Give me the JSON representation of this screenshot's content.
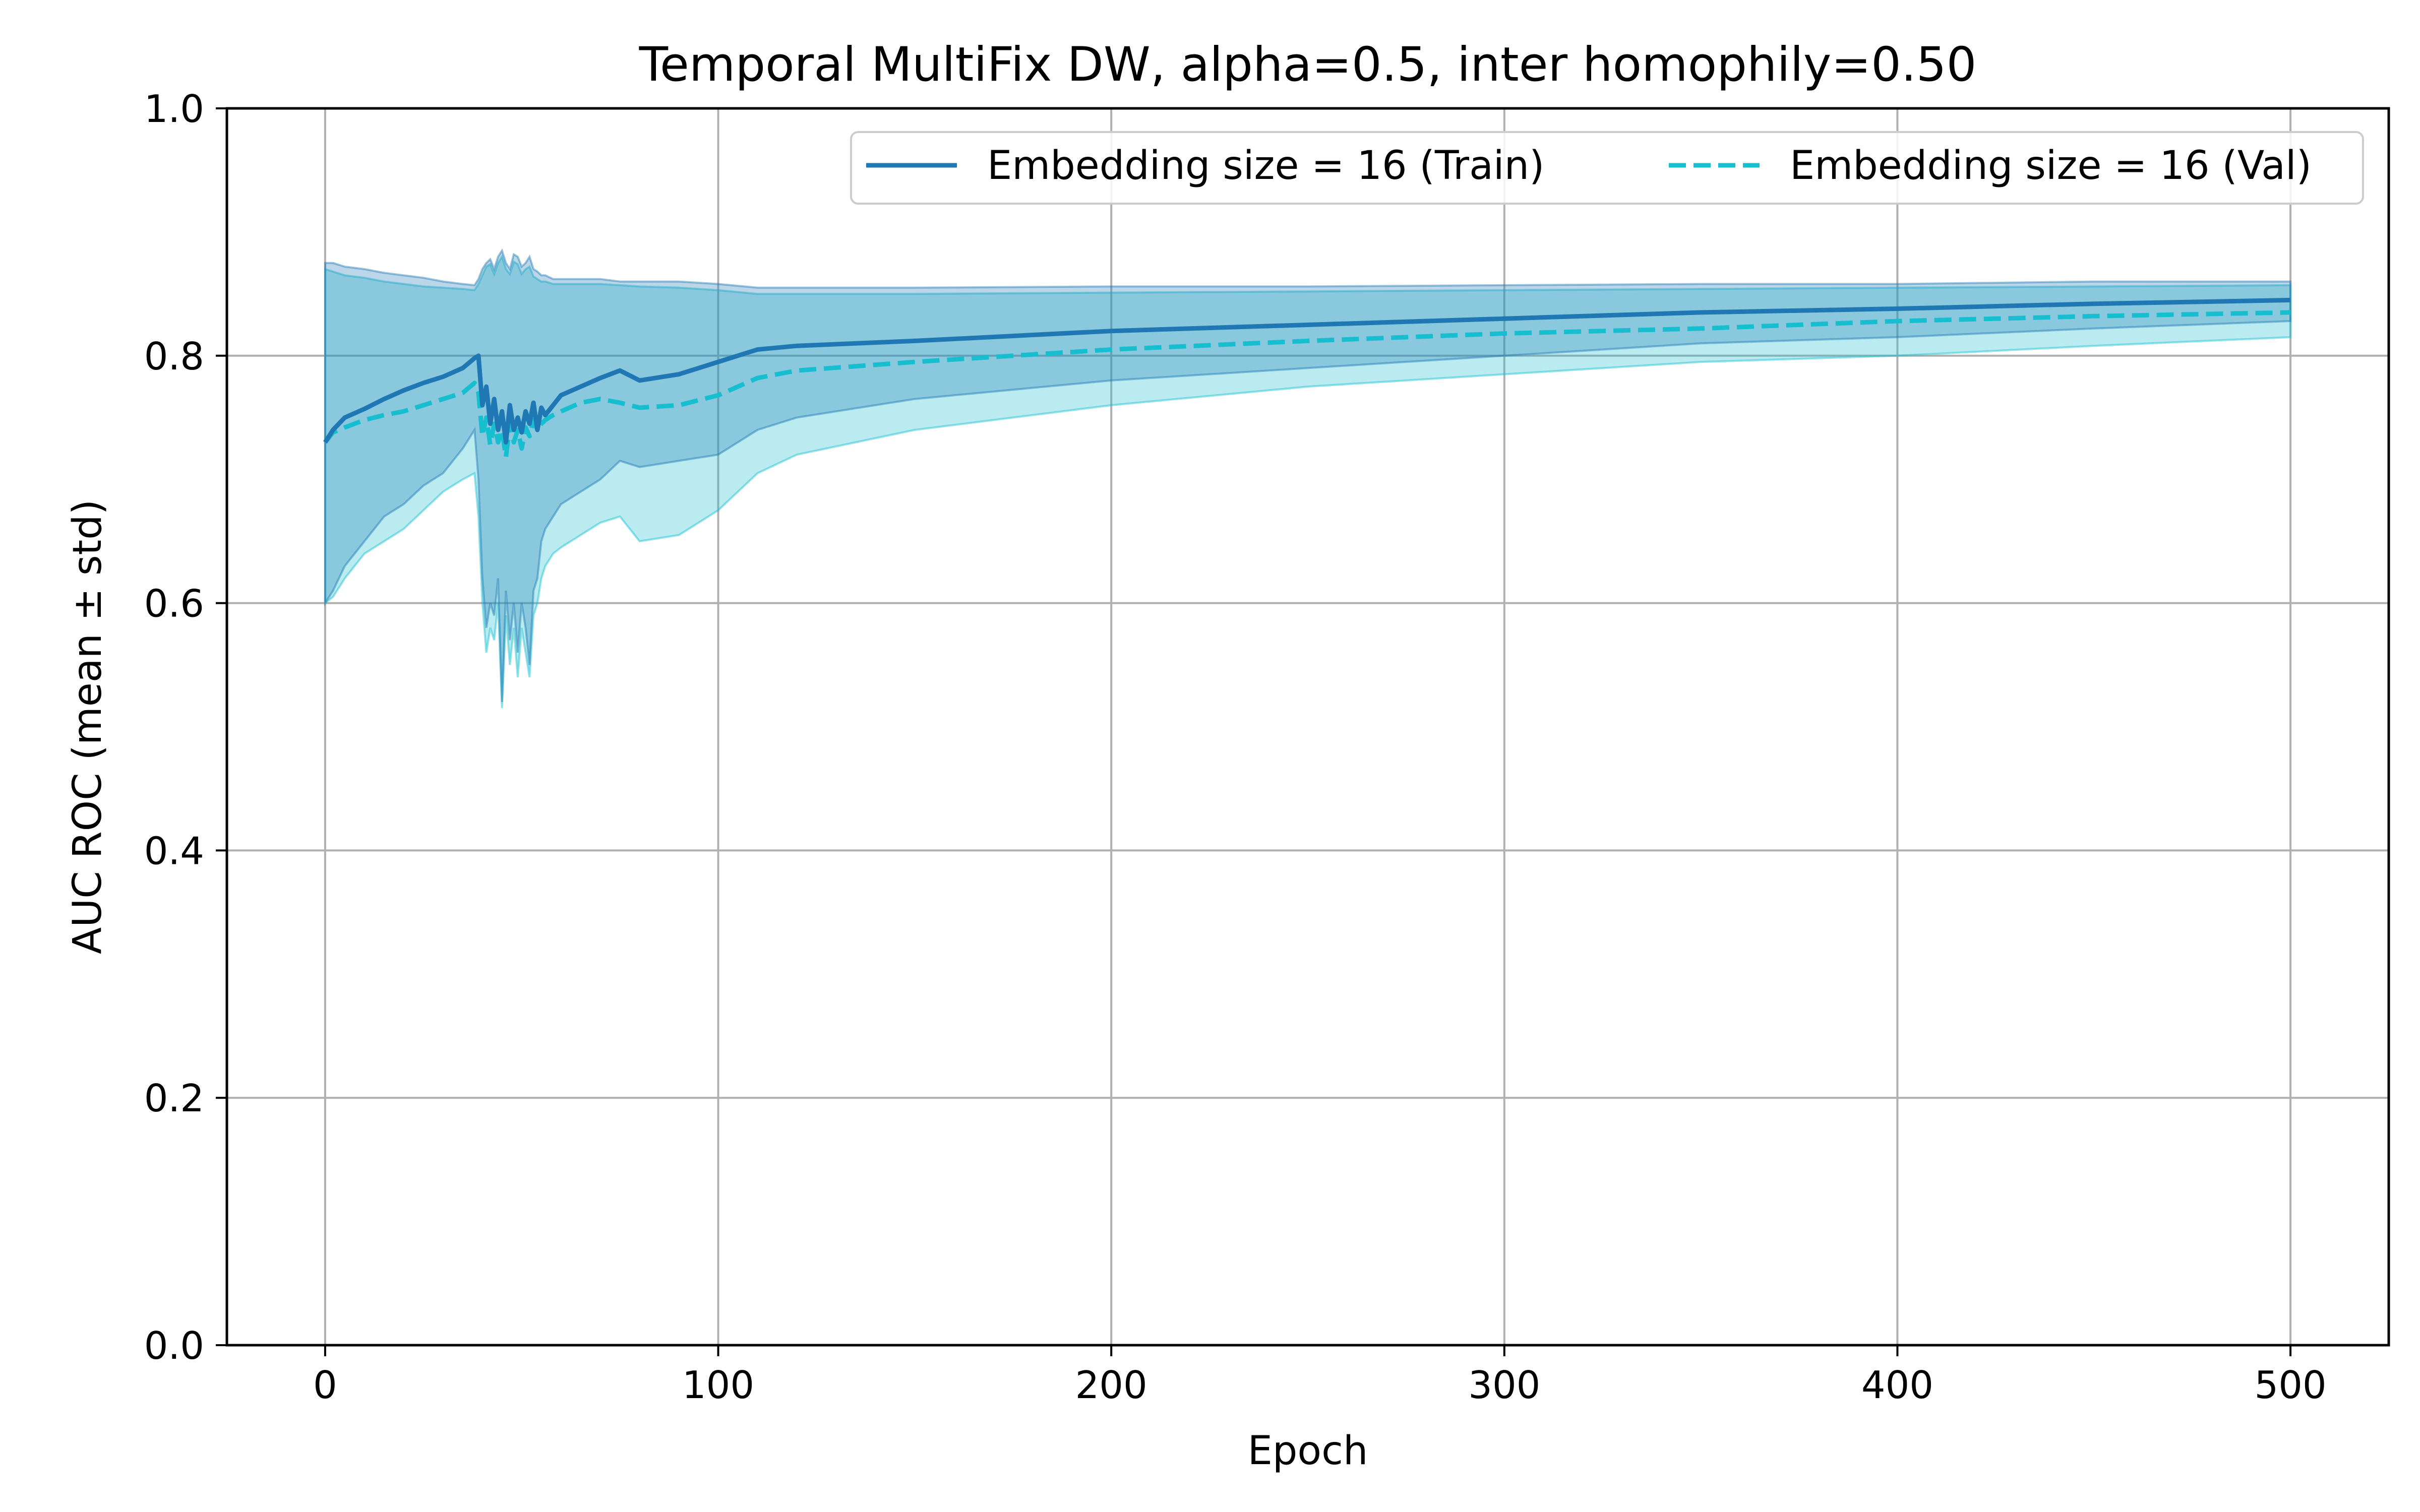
{
  "chart_data": {
    "type": "line",
    "title": "Temporal MultiFix DW, alpha=0.5, inter homophily=0.50",
    "xlabel": "Epoch",
    "ylabel": "AUC ROC (mean ± std)",
    "xlim": [
      -25,
      525
    ],
    "ylim": [
      0.0,
      1.0
    ],
    "xticks": [
      0,
      100,
      200,
      300,
      400,
      500
    ],
    "xtick_labels": [
      "0",
      "100",
      "200",
      "300",
      "400",
      "500"
    ],
    "yticks": [
      0.0,
      0.2,
      0.4,
      0.6,
      0.8,
      1.0
    ],
    "ytick_labels": [
      "0.0",
      "0.2",
      "0.4",
      "0.6",
      "0.8",
      "1.0"
    ],
    "grid": true,
    "legend_position": "top-right",
    "series": [
      {
        "name": "Embedding size = 16 (Train)",
        "color": "#1f77b4",
        "line_style": "solid",
        "x": [
          0,
          2,
          5,
          10,
          15,
          20,
          25,
          30,
          35,
          38,
          39,
          40,
          41,
          42,
          43,
          44,
          45,
          46,
          47,
          48,
          49,
          50,
          51,
          52,
          53,
          54,
          55,
          56,
          58,
          60,
          65,
          70,
          75,
          80,
          90,
          100,
          110,
          120,
          150,
          200,
          250,
          300,
          350,
          400,
          450,
          500
        ],
        "mean": [
          0.73,
          0.74,
          0.75,
          0.757,
          0.765,
          0.772,
          0.778,
          0.783,
          0.79,
          0.798,
          0.8,
          0.76,
          0.775,
          0.745,
          0.765,
          0.74,
          0.755,
          0.73,
          0.76,
          0.74,
          0.75,
          0.738,
          0.755,
          0.745,
          0.762,
          0.74,
          0.758,
          0.752,
          0.76,
          0.768,
          0.775,
          0.782,
          0.788,
          0.78,
          0.785,
          0.795,
          0.805,
          0.808,
          0.812,
          0.82,
          0.825,
          0.83,
          0.835,
          0.838,
          0.842,
          0.845
        ],
        "upper": [
          0.875,
          0.875,
          0.872,
          0.87,
          0.867,
          0.865,
          0.863,
          0.86,
          0.858,
          0.857,
          0.862,
          0.87,
          0.875,
          0.878,
          0.87,
          0.88,
          0.885,
          0.875,
          0.87,
          0.882,
          0.88,
          0.872,
          0.875,
          0.88,
          0.87,
          0.868,
          0.865,
          0.865,
          0.862,
          0.862,
          0.862,
          0.862,
          0.86,
          0.86,
          0.86,
          0.858,
          0.855,
          0.855,
          0.855,
          0.856,
          0.856,
          0.857,
          0.858,
          0.858,
          0.86,
          0.86
        ],
        "lower": [
          0.6,
          0.61,
          0.63,
          0.65,
          0.67,
          0.68,
          0.695,
          0.705,
          0.725,
          0.74,
          0.7,
          0.62,
          0.58,
          0.6,
          0.59,
          0.62,
          0.52,
          0.61,
          0.57,
          0.6,
          0.56,
          0.6,
          0.58,
          0.55,
          0.61,
          0.62,
          0.65,
          0.66,
          0.67,
          0.68,
          0.69,
          0.7,
          0.715,
          0.71,
          0.715,
          0.72,
          0.74,
          0.75,
          0.765,
          0.78,
          0.79,
          0.8,
          0.81,
          0.815,
          0.822,
          0.828
        ]
      },
      {
        "name": "Embedding size = 16 (Val)",
        "color": "#17becf",
        "line_style": "dashed",
        "x": [
          0,
          2,
          5,
          10,
          15,
          20,
          25,
          30,
          35,
          38,
          39,
          40,
          41,
          42,
          43,
          44,
          45,
          46,
          47,
          48,
          49,
          50,
          51,
          52,
          53,
          54,
          55,
          56,
          58,
          60,
          65,
          70,
          75,
          80,
          90,
          100,
          110,
          120,
          150,
          200,
          250,
          300,
          350,
          400,
          450,
          500
        ],
        "mean": [
          0.73,
          0.738,
          0.742,
          0.748,
          0.752,
          0.755,
          0.76,
          0.765,
          0.77,
          0.778,
          0.77,
          0.735,
          0.75,
          0.728,
          0.745,
          0.73,
          0.74,
          0.718,
          0.745,
          0.73,
          0.74,
          0.725,
          0.742,
          0.735,
          0.748,
          0.74,
          0.745,
          0.748,
          0.752,
          0.755,
          0.762,
          0.765,
          0.762,
          0.758,
          0.76,
          0.768,
          0.782,
          0.788,
          0.795,
          0.805,
          0.812,
          0.818,
          0.822,
          0.828,
          0.832,
          0.835
        ],
        "upper": [
          0.87,
          0.868,
          0.865,
          0.863,
          0.86,
          0.858,
          0.856,
          0.855,
          0.854,
          0.853,
          0.858,
          0.865,
          0.872,
          0.874,
          0.866,
          0.875,
          0.88,
          0.87,
          0.866,
          0.876,
          0.874,
          0.866,
          0.87,
          0.872,
          0.864,
          0.862,
          0.86,
          0.86,
          0.858,
          0.858,
          0.858,
          0.858,
          0.857,
          0.856,
          0.855,
          0.853,
          0.85,
          0.85,
          0.85,
          0.851,
          0.852,
          0.853,
          0.854,
          0.855,
          0.856,
          0.857
        ],
        "lower": [
          0.6,
          0.605,
          0.62,
          0.64,
          0.65,
          0.66,
          0.675,
          0.69,
          0.7,
          0.705,
          0.67,
          0.6,
          0.56,
          0.58,
          0.57,
          0.6,
          0.515,
          0.59,
          0.55,
          0.58,
          0.54,
          0.58,
          0.56,
          0.54,
          0.59,
          0.6,
          0.62,
          0.63,
          0.64,
          0.645,
          0.655,
          0.665,
          0.67,
          0.65,
          0.655,
          0.675,
          0.705,
          0.72,
          0.74,
          0.76,
          0.775,
          0.785,
          0.795,
          0.8,
          0.808,
          0.815
        ]
      }
    ]
  }
}
